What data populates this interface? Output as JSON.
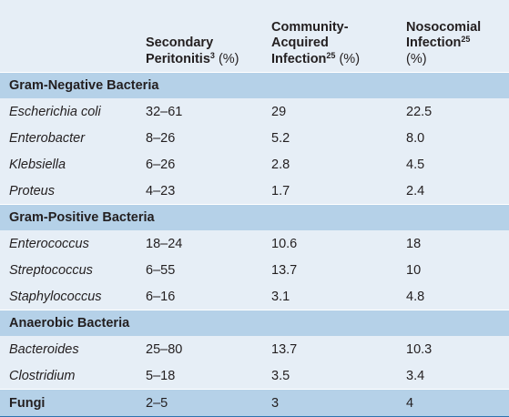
{
  "header": {
    "col1": {
      "line1": "Secondary",
      "line2_bold": "Peritonitis",
      "line2_sup": "3",
      "line2_plain": " (%)"
    },
    "col2": {
      "line1": "Community-",
      "line2": "Acquired",
      "line3_bold": "Infection",
      "line3_sup": "25",
      "line3_plain": " (%)"
    },
    "col3": {
      "line1": "Nosocomial",
      "line2_bold": "Infection",
      "line2_sup": "25",
      "line3": "(%)"
    }
  },
  "sections": [
    {
      "title": "Gram-Negative Bacteria",
      "rows": [
        {
          "organism": "Escherichia coli",
          "secondary": "32–61",
          "community": "29",
          "nosocomial": "22.5"
        },
        {
          "organism": "Enterobacter",
          "secondary": "8–26",
          "community": "5.2",
          "nosocomial": "8.0"
        },
        {
          "organism": "Klebsiella",
          "secondary": "6–26",
          "community": "2.8",
          "nosocomial": "4.5"
        },
        {
          "organism": "Proteus",
          "secondary": "4–23",
          "community": "1.7",
          "nosocomial": "2.4"
        }
      ]
    },
    {
      "title": "Gram-Positive Bacteria",
      "rows": [
        {
          "organism": "Enterococcus",
          "secondary": "18–24",
          "community": "10.6",
          "nosocomial": "18"
        },
        {
          "organism": "Streptococcus",
          "secondary": "6–55",
          "community": "13.7",
          "nosocomial": "10"
        },
        {
          "organism": "Staphylococcus",
          "secondary": "6–16",
          "community": "3.1",
          "nosocomial": "4.8"
        }
      ]
    },
    {
      "title": "Anaerobic Bacteria",
      "rows": [
        {
          "organism": "Bacteroides",
          "secondary": "25–80",
          "community": "13.7",
          "nosocomial": "10.3"
        },
        {
          "organism": "Clostridium",
          "secondary": "5–18",
          "community": "3.5",
          "nosocomial": "3.4"
        }
      ]
    }
  ],
  "fungi": {
    "organism": "Fungi",
    "secondary": "2–5",
    "community": "3",
    "nosocomial": "4"
  },
  "colors": {
    "header_bg": "#e6eef6",
    "section_bg": "#b5d1e8",
    "bottom_rule": "#2f74b0",
    "text": "#231f20"
  }
}
